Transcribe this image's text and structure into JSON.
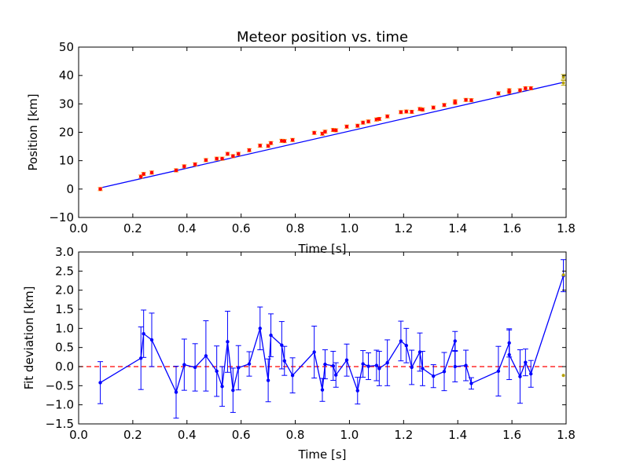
{
  "chart_data": [
    {
      "type": "scatter",
      "title": "Meteor position vs. time",
      "xlabel": "Time [s]",
      "ylabel": "Position [km]",
      "xlim": [
        0.0,
        1.8
      ],
      "ylim": [
        -10,
        50
      ],
      "xticks": [
        "0.0",
        "0.2",
        "0.4",
        "0.6",
        "0.8",
        "1.0",
        "1.2",
        "1.4",
        "1.6",
        "1.8"
      ],
      "yticks": [
        "−10",
        "0",
        "10",
        "20",
        "30",
        "40",
        "50"
      ],
      "grid": false,
      "colors": {
        "fit_line": "#0000ff",
        "points": "#ff0000",
        "errorbars": "#ff8c00",
        "outlier": "#b5a000"
      },
      "fit_line": {
        "x": [
          0.08,
          1.79
        ],
        "y": [
          0.4,
          37.6
        ]
      },
      "points": [
        {
          "x": 0.08,
          "y": 0.0
        },
        {
          "x": 0.23,
          "y": 4.4
        },
        {
          "x": 0.24,
          "y": 5.3
        },
        {
          "x": 0.27,
          "y": 5.8
        },
        {
          "x": 0.36,
          "y": 6.6
        },
        {
          "x": 0.39,
          "y": 8.0
        },
        {
          "x": 0.43,
          "y": 8.7
        },
        {
          "x": 0.47,
          "y": 10.2
        },
        {
          "x": 0.51,
          "y": 10.7
        },
        {
          "x": 0.53,
          "y": 10.7
        },
        {
          "x": 0.55,
          "y": 12.4
        },
        {
          "x": 0.57,
          "y": 11.6
        },
        {
          "x": 0.59,
          "y": 12.4
        },
        {
          "x": 0.63,
          "y": 13.7
        },
        {
          "x": 0.67,
          "y": 15.3
        },
        {
          "x": 0.7,
          "y": 15.2
        },
        {
          "x": 0.71,
          "y": 16.2
        },
        {
          "x": 0.75,
          "y": 17.0
        },
        {
          "x": 0.76,
          "y": 16.9
        },
        {
          "x": 0.79,
          "y": 17.3
        },
        {
          "x": 0.87,
          "y": 19.8
        },
        {
          "x": 0.9,
          "y": 19.5
        },
        {
          "x": 0.91,
          "y": 20.2
        },
        {
          "x": 0.94,
          "y": 20.8
        },
        {
          "x": 0.95,
          "y": 20.7
        },
        {
          "x": 0.99,
          "y": 22.0
        },
        {
          "x": 1.03,
          "y": 22.3
        },
        {
          "x": 1.05,
          "y": 23.4
        },
        {
          "x": 1.07,
          "y": 23.8
        },
        {
          "x": 1.1,
          "y": 24.5
        },
        {
          "x": 1.11,
          "y": 24.7
        },
        {
          "x": 1.14,
          "y": 25.6
        },
        {
          "x": 1.19,
          "y": 27.1
        },
        {
          "x": 1.21,
          "y": 27.3
        },
        {
          "x": 1.23,
          "y": 27.2
        },
        {
          "x": 1.26,
          "y": 28.2
        },
        {
          "x": 1.27,
          "y": 28.0
        },
        {
          "x": 1.31,
          "y": 28.7
        },
        {
          "x": 1.35,
          "y": 29.6
        },
        {
          "x": 1.39,
          "y": 30.9
        },
        {
          "x": 1.39,
          "y": 30.4
        },
        {
          "x": 1.43,
          "y": 31.4
        },
        {
          "x": 1.45,
          "y": 31.3
        },
        {
          "x": 1.55,
          "y": 33.7
        },
        {
          "x": 1.59,
          "y": 34.8
        },
        {
          "x": 1.59,
          "y": 34.2
        },
        {
          "x": 1.63,
          "y": 34.8
        },
        {
          "x": 1.65,
          "y": 35.5
        },
        {
          "x": 1.67,
          "y": 35.5
        }
      ],
      "outliers": [
        {
          "x": 1.79,
          "y": 39.5
        },
        {
          "x": 1.79,
          "y": 37.4
        }
      ],
      "errorbar_halfwidth": 0.55
    },
    {
      "type": "line",
      "title": "",
      "xlabel": "Time [s]",
      "ylabel": "Fit deviation [km]",
      "xlim": [
        0.0,
        1.8
      ],
      "ylim": [
        -1.5,
        3.0
      ],
      "xticks": [
        "0.0",
        "0.2",
        "0.4",
        "0.6",
        "0.8",
        "1.0",
        "1.2",
        "1.4",
        "1.6",
        "1.8"
      ],
      "yticks": [
        "−1.5",
        "−1.0",
        "−0.5",
        "0.0",
        "0.5",
        "1.0",
        "1.5",
        "2.0",
        "2.5",
        "3.0"
      ],
      "grid": false,
      "colors": {
        "series": "#0000ff",
        "zero_line": "#ff0000",
        "outlier": "#b5a000"
      },
      "zero_line": 0.0,
      "series": [
        {
          "x": [
            0.08,
            0.23,
            0.24,
            0.27,
            0.36,
            0.39,
            0.43,
            0.47,
            0.51,
            0.53,
            0.55,
            0.57,
            0.59,
            0.63,
            0.67,
            0.7,
            0.71,
            0.75,
            0.76,
            0.79,
            0.87,
            0.9,
            0.91,
            0.94,
            0.95,
            0.99,
            1.03,
            1.05,
            1.07,
            1.1,
            1.11,
            1.14,
            1.19,
            1.21,
            1.23,
            1.26,
            1.27,
            1.31,
            1.35,
            1.39,
            1.39,
            1.43,
            1.45,
            1.55,
            1.59,
            1.59,
            1.63,
            1.65,
            1.67,
            1.79
          ],
          "y": [
            -0.42,
            0.22,
            0.86,
            0.7,
            -0.67,
            0.05,
            -0.02,
            0.28,
            -0.12,
            -0.52,
            0.65,
            -0.62,
            -0.03,
            0.07,
            1.0,
            -0.36,
            0.82,
            0.56,
            0.15,
            -0.23,
            0.38,
            -0.61,
            0.06,
            0.02,
            -0.22,
            0.17,
            -0.63,
            0.07,
            0.01,
            0.03,
            -0.05,
            0.1,
            0.67,
            0.55,
            -0.02,
            0.38,
            -0.05,
            -0.25,
            -0.13,
            0.67,
            0.0,
            0.03,
            -0.44,
            -0.12,
            0.62,
            0.31,
            -0.26,
            0.11,
            -0.19,
            2.38
          ],
          "err": [
            0.55,
            0.82,
            0.62,
            0.7,
            0.68,
            0.67,
            0.62,
            0.92,
            0.66,
            0.52,
            0.8,
            0.58,
            0.58,
            0.32,
            0.56,
            0.56,
            0.56,
            0.62,
            0.38,
            0.46,
            0.68,
            0.3,
            0.38,
            0.38,
            0.32,
            0.42,
            0.35,
            0.35,
            0.35,
            0.4,
            0.45,
            0.6,
            0.52,
            0.45,
            0.45,
            0.5,
            0.45,
            0.3,
            0.5,
            0.25,
            0.4,
            0.4,
            0.15,
            0.65,
            0.37,
            0.65,
            0.7,
            0.35,
            0.35,
            0.42
          ]
        }
      ],
      "outliers": [
        {
          "x": 1.79,
          "y": 2.4
        },
        {
          "x": 1.79,
          "y": -0.23
        }
      ]
    }
  ]
}
